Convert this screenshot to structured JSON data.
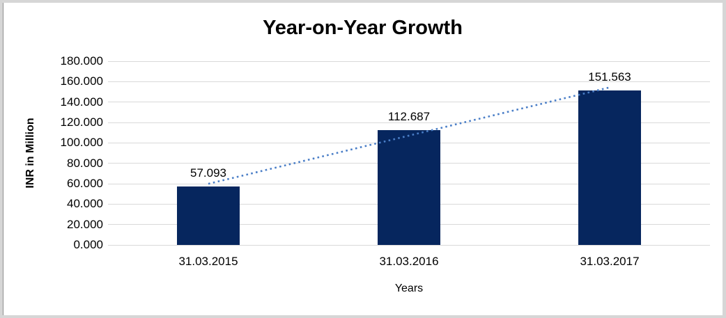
{
  "chart_data": {
    "type": "bar",
    "title": "Year-on-Year Growth",
    "xlabel": "Years",
    "ylabel": "INR in Million",
    "categories": [
      "31.03.2015",
      "31.03.2016",
      "31.03.2017"
    ],
    "values": [
      57.093,
      112.687,
      151.563
    ],
    "data_labels": [
      "57.093",
      "112.687",
      "151.563"
    ],
    "ylim": [
      0,
      180
    ],
    "ytick_step": 20,
    "ytick_labels": [
      "0.000",
      "20.000",
      "40.000",
      "60.000",
      "80.000",
      "100.000",
      "120.000",
      "140.000",
      "160.000",
      "180.000"
    ],
    "grid": "horizontal",
    "legend": "none",
    "trendline": {
      "type": "linear",
      "style": "dotted"
    }
  },
  "colors": {
    "bar": "#06265e",
    "trendline": "#4a7ec7",
    "gridline": "#d9d9d9",
    "frame_border": "#d6d6d6",
    "text": "#000000"
  }
}
